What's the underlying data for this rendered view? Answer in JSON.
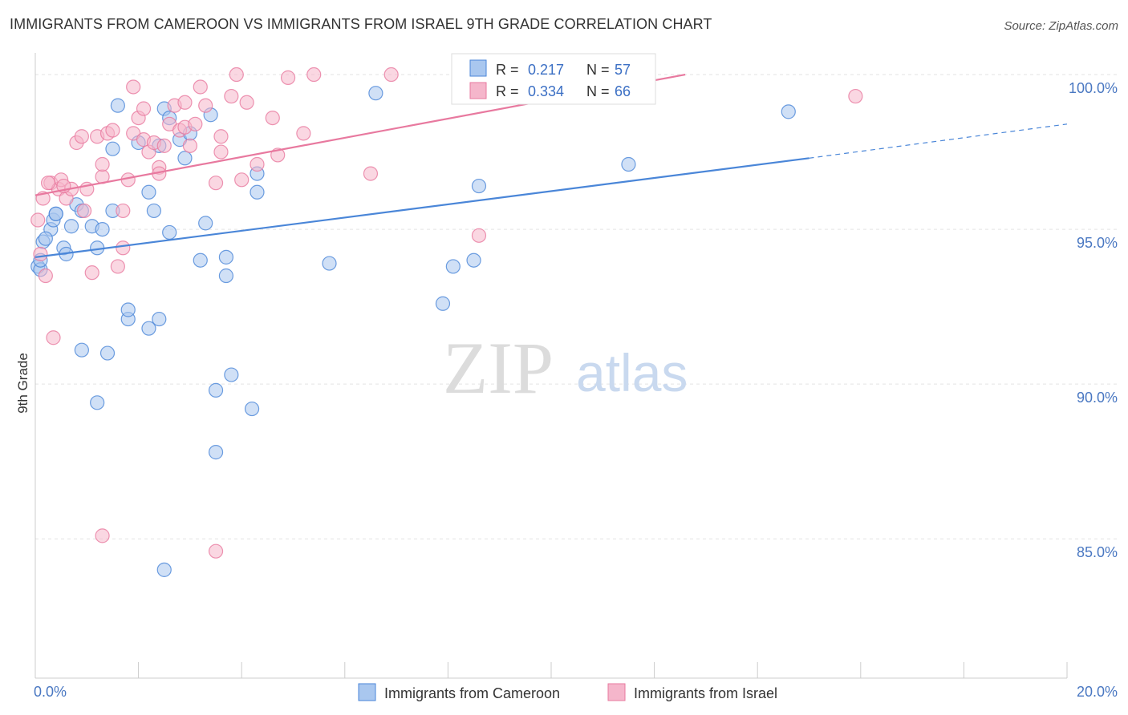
{
  "title": "IMMIGRANTS FROM CAMEROON VS IMMIGRANTS FROM ISRAEL 9TH GRADE CORRELATION CHART",
  "source": "Source: ZipAtlas.com",
  "watermark": {
    "part1": "ZIP",
    "part2": "atlas"
  },
  "colors": {
    "blue": "#4a86d8",
    "pink": "#e8799f",
    "blue_fill": "#a9c7ef",
    "pink_fill": "#f5b6cb",
    "axis_text": "#4a78c2"
  },
  "legend_box": {
    "rows": [
      {
        "r_label": "R =",
        "r_value": "0.217",
        "n_label": "N =",
        "n_value": "57"
      },
      {
        "r_label": "R =",
        "r_value": "0.334",
        "n_label": "N =",
        "n_value": "66"
      }
    ]
  },
  "chart_data": {
    "type": "scatter",
    "xlabel": "",
    "ylabel": "9th Grade",
    "xlim": [
      0,
      20
    ],
    "ylim": [
      80.5,
      100.7
    ],
    "x_tick_labels": [
      "0.0%",
      "20.0%"
    ],
    "y_ticks": [
      85,
      90,
      95,
      100
    ],
    "y_tick_labels": [
      "85.0%",
      "90.0%",
      "95.0%",
      "100.0%"
    ],
    "grid": true,
    "legend_position": "bottom",
    "series": [
      {
        "name": "Immigrants from Cameroon",
        "color": "#4a86d8",
        "trend": {
          "x0": 0.0,
          "y0": 94.1,
          "x1": 15.0,
          "y1": 97.3,
          "dashed_to_x": 20.0,
          "dashed_to_y": 98.4
        },
        "points": [
          [
            0.05,
            93.8
          ],
          [
            0.1,
            93.7
          ],
          [
            0.15,
            94.6
          ],
          [
            0.3,
            95.0
          ],
          [
            0.35,
            95.3
          ],
          [
            0.4,
            95.5
          ],
          [
            0.55,
            94.4
          ],
          [
            0.6,
            94.2
          ],
          [
            0.7,
            95.1
          ],
          [
            0.8,
            95.8
          ],
          [
            0.9,
            95.6
          ],
          [
            1.1,
            95.1
          ],
          [
            1.2,
            94.4
          ],
          [
            1.3,
            95.0
          ],
          [
            1.5,
            95.6
          ],
          [
            1.5,
            97.6
          ],
          [
            1.6,
            99.0
          ],
          [
            1.8,
            92.1
          ],
          [
            1.8,
            92.4
          ],
          [
            2.0,
            97.8
          ],
          [
            2.2,
            96.2
          ],
          [
            2.2,
            91.8
          ],
          [
            2.3,
            95.6
          ],
          [
            2.4,
            92.1
          ],
          [
            2.4,
            97.7
          ],
          [
            2.5,
            98.9
          ],
          [
            2.6,
            94.9
          ],
          [
            2.6,
            98.6
          ],
          [
            2.8,
            97.9
          ],
          [
            2.9,
            97.3
          ],
          [
            3.0,
            98.1
          ],
          [
            3.2,
            94.0
          ],
          [
            3.3,
            95.2
          ],
          [
            3.4,
            98.7
          ],
          [
            3.5,
            89.8
          ],
          [
            3.7,
            94.1
          ],
          [
            3.7,
            93.5
          ],
          [
            3.8,
            90.3
          ],
          [
            4.2,
            89.2
          ],
          [
            4.3,
            96.8
          ],
          [
            4.3,
            96.2
          ],
          [
            5.7,
            93.9
          ],
          [
            6.6,
            99.4
          ],
          [
            7.9,
            92.6
          ],
          [
            8.1,
            93.8
          ],
          [
            8.5,
            94.0
          ],
          [
            8.6,
            96.4
          ],
          [
            11.5,
            97.1
          ],
          [
            14.6,
            98.8
          ],
          [
            0.9,
            91.1
          ],
          [
            1.4,
            91.0
          ],
          [
            1.2,
            89.4
          ],
          [
            3.5,
            87.8
          ],
          [
            2.5,
            84.0
          ],
          [
            0.2,
            94.7
          ],
          [
            0.1,
            94.0
          ],
          [
            0.4,
            95.5
          ]
        ]
      },
      {
        "name": "Immigrants from Israel",
        "color": "#e8799f",
        "trend": {
          "x0": 0.0,
          "y0": 96.1,
          "x1": 12.6,
          "y1": 100.0
        },
        "points": [
          [
            0.05,
            95.3
          ],
          [
            0.1,
            94.2
          ],
          [
            0.15,
            96.0
          ],
          [
            0.2,
            93.5
          ],
          [
            0.3,
            96.5
          ],
          [
            0.35,
            91.5
          ],
          [
            0.45,
            96.3
          ],
          [
            0.5,
            96.6
          ],
          [
            0.6,
            96.0
          ],
          [
            0.7,
            96.3
          ],
          [
            0.8,
            97.8
          ],
          [
            0.9,
            98.0
          ],
          [
            0.95,
            95.6
          ],
          [
            1.0,
            96.3
          ],
          [
            1.1,
            93.6
          ],
          [
            1.2,
            98.0
          ],
          [
            1.3,
            96.7
          ],
          [
            1.3,
            97.1
          ],
          [
            1.4,
            98.1
          ],
          [
            1.5,
            98.2
          ],
          [
            1.6,
            93.8
          ],
          [
            1.7,
            95.6
          ],
          [
            1.8,
            96.6
          ],
          [
            1.9,
            98.1
          ],
          [
            1.9,
            99.6
          ],
          [
            2.0,
            98.6
          ],
          [
            2.1,
            97.9
          ],
          [
            2.2,
            97.5
          ],
          [
            2.3,
            97.8
          ],
          [
            2.4,
            97.0
          ],
          [
            2.5,
            97.7
          ],
          [
            2.6,
            98.4
          ],
          [
            2.7,
            99.0
          ],
          [
            2.8,
            98.2
          ],
          [
            2.9,
            98.3
          ],
          [
            3.0,
            97.7
          ],
          [
            3.2,
            99.6
          ],
          [
            3.3,
            99.0
          ],
          [
            3.5,
            96.5
          ],
          [
            3.6,
            97.5
          ],
          [
            3.6,
            98.0
          ],
          [
            3.8,
            99.3
          ],
          [
            3.9,
            100.0
          ],
          [
            4.0,
            96.6
          ],
          [
            4.1,
            99.1
          ],
          [
            4.3,
            97.1
          ],
          [
            4.6,
            98.6
          ],
          [
            4.7,
            97.4
          ],
          [
            5.2,
            98.1
          ],
          [
            5.4,
            100.0
          ],
          [
            6.5,
            96.8
          ],
          [
            6.9,
            100.0
          ],
          [
            8.6,
            94.8
          ],
          [
            10.6,
            100.0
          ],
          [
            10.8,
            100.0
          ],
          [
            15.9,
            99.3
          ],
          [
            1.3,
            85.1
          ],
          [
            3.5,
            84.6
          ],
          [
            2.1,
            98.9
          ],
          [
            4.9,
            99.9
          ],
          [
            2.4,
            96.8
          ],
          [
            2.9,
            99.1
          ],
          [
            0.55,
            96.4
          ],
          [
            1.7,
            94.4
          ],
          [
            0.25,
            96.5
          ],
          [
            3.1,
            98.4
          ]
        ]
      }
    ]
  }
}
